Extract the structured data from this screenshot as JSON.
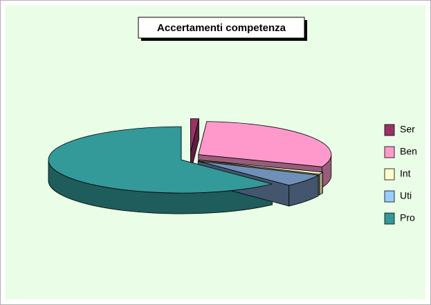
{
  "chart_data": {
    "type": "pie3d",
    "title": "Accertamenti competenza",
    "categories": [
      "Ser",
      "Ben",
      "Int",
      "Uti",
      "Pro"
    ],
    "values": [
      1,
      30,
      1,
      6,
      62
    ],
    "colors": [
      "#993366",
      "#ff99cc",
      "#ffffcc",
      "#7090b8",
      "#339999"
    ],
    "legend": "right"
  }
}
